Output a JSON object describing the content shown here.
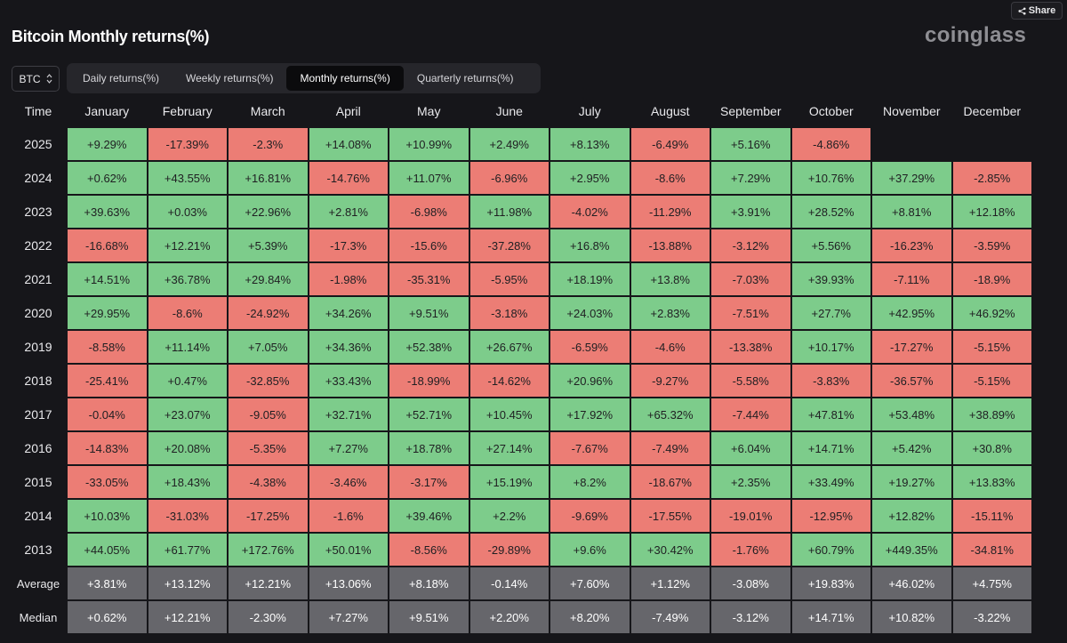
{
  "header": {
    "title": "Bitcoin Monthly returns(%)",
    "brand": "coinglass",
    "share_label": "Share"
  },
  "symbol_select": {
    "value": "BTC"
  },
  "tabs": [
    {
      "label": "Daily returns(%)",
      "active": false
    },
    {
      "label": "Weekly returns(%)",
      "active": false
    },
    {
      "label": "Monthly returns(%)",
      "active": true
    },
    {
      "label": "Quarterly returns(%)",
      "active": false
    }
  ],
  "table": {
    "time_header": "Time",
    "months": [
      "January",
      "February",
      "March",
      "April",
      "May",
      "June",
      "July",
      "August",
      "September",
      "October",
      "November",
      "December"
    ],
    "rows": [
      {
        "year": "2025",
        "values": [
          "+9.29%",
          "-17.39%",
          "-2.3%",
          "+14.08%",
          "+10.99%",
          "+2.49%",
          "+8.13%",
          "-6.49%",
          "+5.16%",
          "-4.86%",
          "",
          ""
        ]
      },
      {
        "year": "2024",
        "values": [
          "+0.62%",
          "+43.55%",
          "+16.81%",
          "-14.76%",
          "+11.07%",
          "-6.96%",
          "+2.95%",
          "-8.6%",
          "+7.29%",
          "+10.76%",
          "+37.29%",
          "-2.85%"
        ]
      },
      {
        "year": "2023",
        "values": [
          "+39.63%",
          "+0.03%",
          "+22.96%",
          "+2.81%",
          "-6.98%",
          "+11.98%",
          "-4.02%",
          "-11.29%",
          "+3.91%",
          "+28.52%",
          "+8.81%",
          "+12.18%"
        ]
      },
      {
        "year": "2022",
        "values": [
          "-16.68%",
          "+12.21%",
          "+5.39%",
          "-17.3%",
          "-15.6%",
          "-37.28%",
          "+16.8%",
          "-13.88%",
          "-3.12%",
          "+5.56%",
          "-16.23%",
          "-3.59%"
        ]
      },
      {
        "year": "2021",
        "values": [
          "+14.51%",
          "+36.78%",
          "+29.84%",
          "-1.98%",
          "-35.31%",
          "-5.95%",
          "+18.19%",
          "+13.8%",
          "-7.03%",
          "+39.93%",
          "-7.11%",
          "-18.9%"
        ]
      },
      {
        "year": "2020",
        "values": [
          "+29.95%",
          "-8.6%",
          "-24.92%",
          "+34.26%",
          "+9.51%",
          "-3.18%",
          "+24.03%",
          "+2.83%",
          "-7.51%",
          "+27.7%",
          "+42.95%",
          "+46.92%"
        ]
      },
      {
        "year": "2019",
        "values": [
          "-8.58%",
          "+11.14%",
          "+7.05%",
          "+34.36%",
          "+52.38%",
          "+26.67%",
          "-6.59%",
          "-4.6%",
          "-13.38%",
          "+10.17%",
          "-17.27%",
          "-5.15%"
        ]
      },
      {
        "year": "2018",
        "values": [
          "-25.41%",
          "+0.47%",
          "-32.85%",
          "+33.43%",
          "-18.99%",
          "-14.62%",
          "+20.96%",
          "-9.27%",
          "-5.58%",
          "-3.83%",
          "-36.57%",
          "-5.15%"
        ]
      },
      {
        "year": "2017",
        "values": [
          "-0.04%",
          "+23.07%",
          "-9.05%",
          "+32.71%",
          "+52.71%",
          "+10.45%",
          "+17.92%",
          "+65.32%",
          "-7.44%",
          "+47.81%",
          "+53.48%",
          "+38.89%"
        ]
      },
      {
        "year": "2016",
        "values": [
          "-14.83%",
          "+20.08%",
          "-5.35%",
          "+7.27%",
          "+18.78%",
          "+27.14%",
          "-7.67%",
          "-7.49%",
          "+6.04%",
          "+14.71%",
          "+5.42%",
          "+30.8%"
        ]
      },
      {
        "year": "2015",
        "values": [
          "-33.05%",
          "+18.43%",
          "-4.38%",
          "-3.46%",
          "-3.17%",
          "+15.19%",
          "+8.2%",
          "-18.67%",
          "+2.35%",
          "+33.49%",
          "+19.27%",
          "+13.83%"
        ]
      },
      {
        "year": "2014",
        "values": [
          "+10.03%",
          "-31.03%",
          "-17.25%",
          "-1.6%",
          "+39.46%",
          "+2.2%",
          "-9.69%",
          "-17.55%",
          "-19.01%",
          "-12.95%",
          "+12.82%",
          "-15.11%"
        ]
      },
      {
        "year": "2013",
        "values": [
          "+44.05%",
          "+61.77%",
          "+172.76%",
          "+50.01%",
          "-8.56%",
          "-29.89%",
          "+9.6%",
          "+30.42%",
          "-1.76%",
          "+60.79%",
          "+449.35%",
          "-34.81%"
        ]
      }
    ],
    "summary": [
      {
        "label": "Average",
        "values": [
          "+3.81%",
          "+13.12%",
          "+12.21%",
          "+13.06%",
          "+8.18%",
          "-0.14%",
          "+7.60%",
          "+1.12%",
          "-3.08%",
          "+19.83%",
          "+46.02%",
          "+4.75%"
        ]
      },
      {
        "label": "Median",
        "values": [
          "+0.62%",
          "+12.21%",
          "-2.30%",
          "+7.27%",
          "+9.51%",
          "+2.20%",
          "+8.20%",
          "-7.49%",
          "-3.12%",
          "+14.71%",
          "+10.82%",
          "-3.22%"
        ]
      }
    ]
  },
  "colors": {
    "positive": "#7dcc8b",
    "negative": "#ec7d75",
    "summary": "#66666b",
    "background": "#16161a"
  }
}
